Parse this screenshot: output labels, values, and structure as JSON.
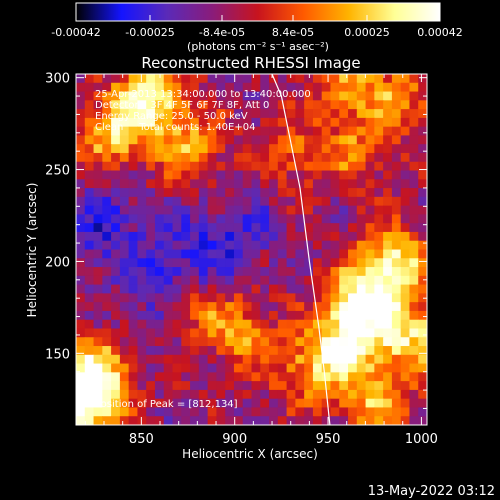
{
  "chart_data": {
    "type": "heatmap",
    "title": "Reconstructed RHESSI Image",
    "xlabel": "Heliocentric X (arcsec)",
    "ylabel": "Heliocentric Y (arcsec)",
    "xlim": [
      815,
      1003
    ],
    "ylim": [
      111,
      302
    ],
    "x_ticks": [
      850,
      900,
      950,
      1000
    ],
    "y_ticks": [
      150,
      200,
      250,
      300
    ],
    "colorbar": {
      "label": "(photons cm⁻² s⁻¹ asec⁻²)",
      "range": [
        -0.00042,
        0.00042
      ],
      "ticks": [
        "-0.00042",
        "-0.00025",
        "-8.4e-05",
        "8.4e-05",
        "0.00025",
        "0.00042"
      ],
      "colormap": [
        "#000000",
        "#1414ff",
        "#5a2ab8",
        "#8a1c7a",
        "#c8141e",
        "#ff5a00",
        "#ffb400",
        "#ffff96",
        "#ffffff"
      ]
    },
    "annotations": [
      "25-Apr-2013 13:34:00.000 to 13:40:00.000",
      "Detectors: 3F 4F 5F 6F 7F 8F, Att 0",
      "Energy Range: 25.0 - 50.0 keV",
      "Clean     Total counts: 1.40E+04",
      "Position of Peak = [812,134]"
    ],
    "limb_curve": [
      [
        920,
        302
      ],
      [
        925,
        290
      ],
      [
        930,
        265
      ],
      [
        935,
        240
      ],
      [
        940,
        200
      ],
      [
        945,
        165
      ],
      [
        948,
        140
      ],
      [
        951,
        111
      ]
    ],
    "bright_sources": [
      {
        "x": 855,
        "y": 290,
        "intensity": 0.9
      },
      {
        "x": 835,
        "y": 270,
        "intensity": 0.75
      },
      {
        "x": 875,
        "y": 262,
        "intensity": 0.6
      },
      {
        "x": 820,
        "y": 122,
        "intensity": 1.0
      },
      {
        "x": 825,
        "y": 140,
        "intensity": 0.85
      },
      {
        "x": 968,
        "y": 178,
        "intensity": 1.0
      },
      {
        "x": 985,
        "y": 200,
        "intensity": 0.9
      },
      {
        "x": 960,
        "y": 155,
        "intensity": 0.85
      },
      {
        "x": 995,
        "y": 160,
        "intensity": 0.8
      },
      {
        "x": 975,
        "y": 125,
        "intensity": 0.65
      },
      {
        "x": 940,
        "y": 140,
        "intensity": 0.55
      },
      {
        "x": 905,
        "y": 160,
        "intensity": 0.55
      },
      {
        "x": 990,
        "y": 288,
        "intensity": 0.5
      },
      {
        "x": 965,
        "y": 260,
        "intensity": 0.45
      },
      {
        "x": 960,
        "y": 295,
        "intensity": 0.55
      },
      {
        "x": 880,
        "y": 175,
        "intensity": 0.45
      },
      {
        "x": 930,
        "y": 260,
        "intensity": 0.4
      }
    ],
    "dark_regions": [
      {
        "x": 830,
        "y": 220,
        "intensity": 0.7
      },
      {
        "x": 875,
        "y": 200,
        "intensity": 0.6
      },
      {
        "x": 900,
        "y": 215,
        "intensity": 0.5
      },
      {
        "x": 860,
        "y": 180,
        "intensity": 0.45
      }
    ]
  },
  "timestamp": "13-May-2022 03:12"
}
